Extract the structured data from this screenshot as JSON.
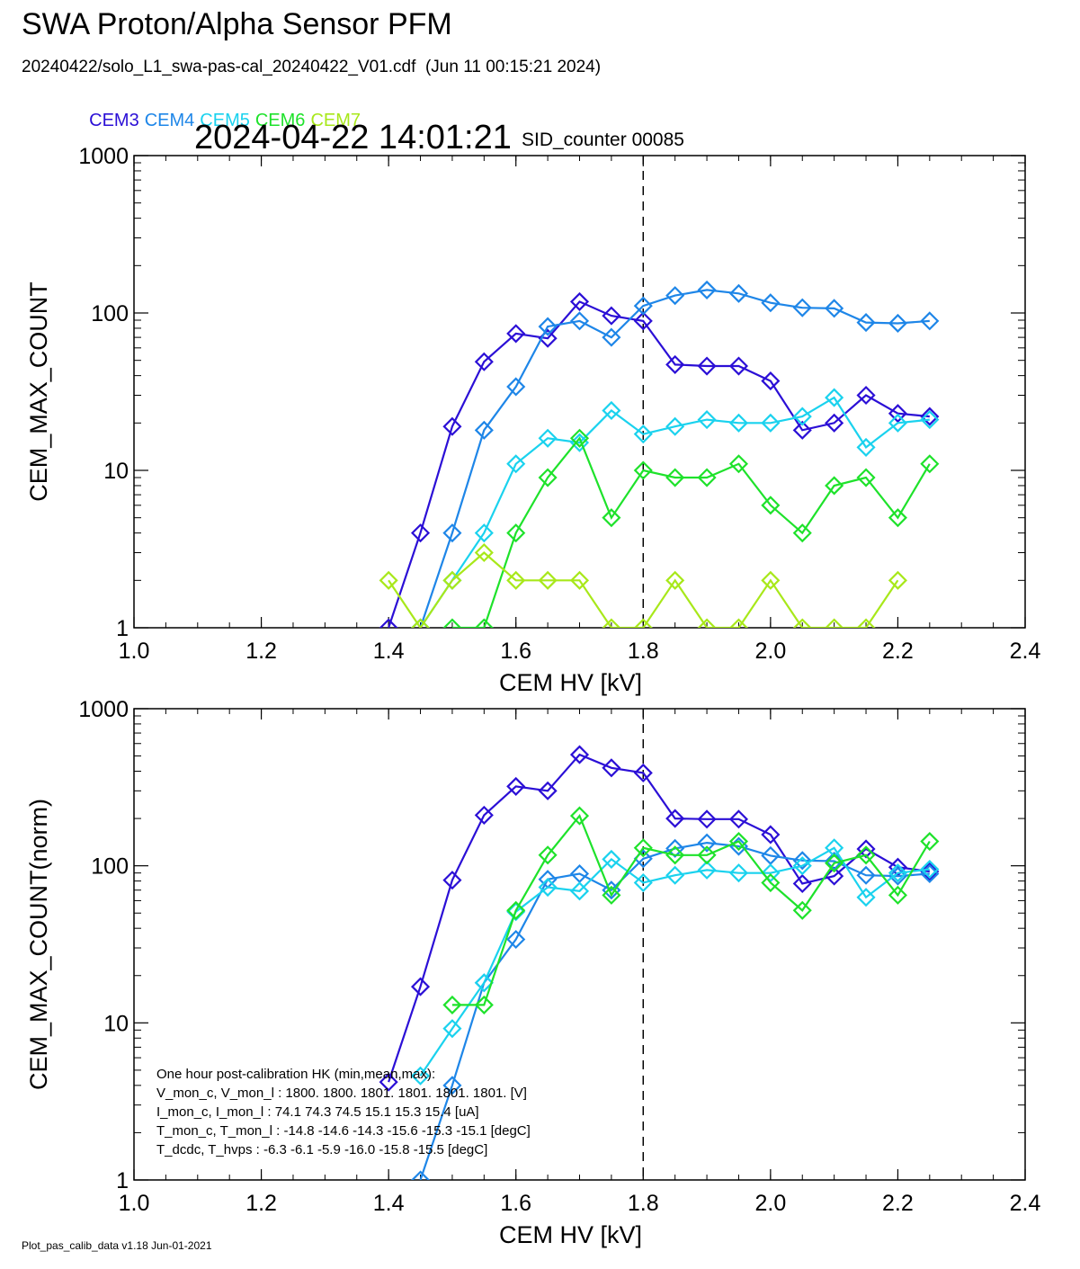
{
  "title": "SWA Proton/Alpha Sensor PFM",
  "file_line": "20240422/solo_L1_swa-pas-cal_20240422_V01.cdf  (Jun 11 00:15:21 2024)",
  "timestamp": "2024-04-22 14:01:21",
  "sid_counter": "SID_counter 00085",
  "footer": "Plot_pas_calib_data v1.18 Jun-01-2021",
  "legend": [
    {
      "label": "CEM3",
      "color": "#2b0fd6"
    },
    {
      "label": "CEM4",
      "color": "#1e86e8"
    },
    {
      "label": "CEM5",
      "color": "#1ad2ee"
    },
    {
      "label": "CEM6",
      "color": "#1ee22b"
    },
    {
      "label": "CEM7",
      "color": "#a8e81a"
    }
  ],
  "hk_box": {
    "title": "One hour post-calibration HK (min,mean,max):",
    "rows": [
      "V_mon_c, V_mon_l :   1800.  1800.  1801.     1801.  1801.  1801. [V]",
      "I_mon_c,  I_mon_l :     74.1   74.3   74.5        15.1   15.3   15.4  [uA]",
      "T_mon_c, T_mon_l :   -14.8  -14.6  -14.3        -15.6  -15.3  -15.1  [degC]",
      "T_dcdc,    T_hvps :      -6.3   -6.1   -5.9         -16.0  -15.8  -15.5  [degC]"
    ]
  },
  "chart_data": [
    {
      "type": "line",
      "xlabel": "CEM HV [kV]",
      "ylabel": "CEM_MAX_COUNT",
      "xlim": [
        1.0,
        2.4
      ],
      "ylim": [
        1,
        1000
      ],
      "yscale": "log",
      "xticks": [
        "1.0",
        "1.2",
        "1.4",
        "1.6",
        "1.8",
        "2.0",
        "2.2",
        "2.4"
      ],
      "yticks": [
        "1",
        "10",
        "100",
        "1000"
      ],
      "vline_x": 1.8,
      "marker": "diamond",
      "series": [
        {
          "name": "CEM3",
          "color": "#2b0fd6",
          "x": [
            1.4,
            1.45,
            1.5,
            1.55,
            1.6,
            1.65,
            1.7,
            1.75,
            1.8,
            1.85,
            1.9,
            1.95,
            2.0,
            2.05,
            2.1,
            2.15,
            2.2,
            2.25
          ],
          "y": [
            1,
            4,
            19,
            49,
            74,
            69,
            118,
            96,
            89,
            47,
            46,
            46,
            37,
            18,
            20,
            30,
            23,
            22
          ]
        },
        {
          "name": "CEM4",
          "color": "#1e86e8",
          "x": [
            1.45,
            1.5,
            1.55,
            1.6,
            1.65,
            1.7,
            1.75,
            1.8,
            1.85,
            1.9,
            1.95,
            2.0,
            2.05,
            2.1,
            2.15,
            2.2,
            2.25
          ],
          "y": [
            1,
            4,
            18,
            34,
            82,
            89,
            70,
            111,
            129,
            140,
            133,
            116,
            108,
            107,
            87,
            86,
            89
          ]
        },
        {
          "name": "CEM5",
          "color": "#1ad2ee",
          "x": [
            1.45,
            1.5,
            1.55,
            1.6,
            1.65,
            1.7,
            1.75,
            1.8,
            1.85,
            1.9,
            1.95,
            2.0,
            2.05,
            2.1,
            2.15,
            2.2,
            2.25
          ],
          "y": [
            1,
            2,
            4,
            11,
            16,
            15,
            24,
            17,
            19,
            21,
            20,
            20,
            22,
            29,
            14,
            20,
            21
          ]
        },
        {
          "name": "CEM6",
          "color": "#1ee22b",
          "x": [
            1.5,
            1.55,
            1.6,
            1.65,
            1.7,
            1.75,
            1.8,
            1.85,
            1.9,
            1.95,
            2.0,
            2.05,
            2.1,
            2.15,
            2.2,
            2.25
          ],
          "y": [
            1,
            1,
            4,
            9,
            16,
            5,
            10,
            9,
            9,
            11,
            6,
            4,
            8,
            9,
            5,
            11
          ]
        },
        {
          "name": "CEM7",
          "color": "#a8e81a",
          "x": [
            1.4,
            1.45,
            1.5,
            1.55,
            1.6,
            1.65,
            1.7,
            1.75,
            1.8,
            1.85,
            1.9,
            1.95,
            2.0,
            2.05,
            2.1,
            2.15,
            2.2
          ],
          "y": [
            2,
            1,
            2,
            3,
            2,
            2,
            2,
            1,
            1,
            2,
            1,
            1,
            2,
            1,
            1,
            1,
            2
          ]
        }
      ]
    },
    {
      "type": "line",
      "xlabel": "CEM HV [kV]",
      "ylabel": "CEM_MAX_COUNT(norm)",
      "xlim": [
        1.0,
        2.4
      ],
      "ylim": [
        1,
        1000
      ],
      "yscale": "log",
      "xticks": [
        "1.0",
        "1.2",
        "1.4",
        "1.6",
        "1.8",
        "2.0",
        "2.2",
        "2.4"
      ],
      "yticks": [
        "1",
        "10",
        "100",
        "1000"
      ],
      "vline_x": 1.8,
      "marker": "diamond",
      "series": [
        {
          "name": "CEM3",
          "color": "#2b0fd6",
          "x": [
            1.4,
            1.45,
            1.5,
            1.55,
            1.6,
            1.65,
            1.7,
            1.75,
            1.8,
            1.85,
            1.9,
            1.95,
            2.0,
            2.05,
            2.1,
            2.15,
            2.2,
            2.25
          ],
          "y": [
            4.2,
            17,
            81,
            210,
            320,
            300,
            510,
            420,
            390,
            200,
            198,
            198,
            158,
            77,
            86,
            128,
            98,
            92
          ]
        },
        {
          "name": "CEM4",
          "color": "#1e86e8",
          "x": [
            1.45,
            1.5,
            1.55,
            1.6,
            1.65,
            1.7,
            1.75,
            1.8,
            1.85,
            1.9,
            1.95,
            2.0,
            2.05,
            2.1,
            2.15,
            2.2,
            2.25
          ],
          "y": [
            1,
            4,
            18,
            34,
            82,
            89,
            70,
            111,
            129,
            140,
            133,
            116,
            108,
            107,
            87,
            86,
            89
          ]
        },
        {
          "name": "CEM5",
          "color": "#1ad2ee",
          "x": [
            1.45,
            1.5,
            1.55,
            1.6,
            1.65,
            1.7,
            1.75,
            1.8,
            1.85,
            1.9,
            1.95,
            2.0,
            2.05,
            2.1,
            2.15,
            2.2,
            2.25
          ],
          "y": [
            4.6,
            9.2,
            18,
            51,
            73,
            69,
            110,
            78,
            87,
            94,
            90,
            90,
            100,
            130,
            63,
            90,
            95
          ]
        },
        {
          "name": "CEM6",
          "color": "#1ee22b",
          "x": [
            1.5,
            1.55,
            1.6,
            1.65,
            1.7,
            1.75,
            1.8,
            1.85,
            1.9,
            1.95,
            2.0,
            2.05,
            2.1,
            2.15,
            2.2,
            2.25
          ],
          "y": [
            13,
            13,
            52,
            117,
            208,
            65,
            130,
            117,
            117,
            143,
            78,
            52,
            104,
            117,
            65,
            143
          ]
        }
      ]
    }
  ]
}
